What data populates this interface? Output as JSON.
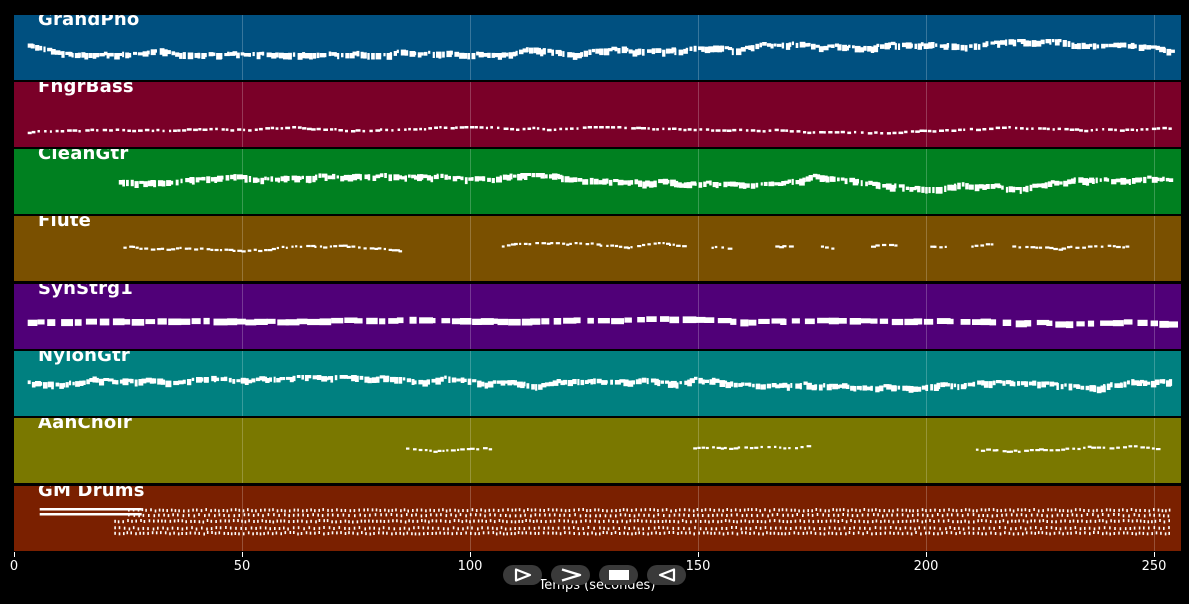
{
  "tracks": [
    {
      "name": "GrandPno",
      "color": "#005080",
      "density": "dense",
      "segments": [
        [
          3,
          254
        ]
      ]
    },
    {
      "name": "FngrBass",
      "color": "#7a0028",
      "density": "sparse",
      "segments": [
        [
          3,
          254
        ]
      ]
    },
    {
      "name": "CleanGtr",
      "color": "#008020",
      "density": "dense",
      "segments": [
        [
          23,
          254
        ]
      ]
    },
    {
      "name": "Flute",
      "color": "#7a5000",
      "density": "phrase",
      "segments": [
        [
          24,
          85
        ],
        [
          107,
          147
        ],
        [
          153,
          158
        ],
        [
          167,
          170
        ],
        [
          177,
          180
        ],
        [
          188,
          194
        ],
        [
          201,
          205
        ],
        [
          210,
          215
        ],
        [
          219,
          230
        ],
        [
          231,
          244
        ]
      ]
    },
    {
      "name": "SynStrg1",
      "color": "#500078",
      "density": "block",
      "segments": [
        [
          3,
          254
        ]
      ]
    },
    {
      "name": "NylonGtr",
      "color": "#008080",
      "density": "dense",
      "segments": [
        [
          3,
          254
        ]
      ]
    },
    {
      "name": "AahChoir",
      "color": "#7a7800",
      "density": "phrase",
      "segments": [
        [
          86,
          105
        ],
        [
          149,
          175
        ],
        [
          211,
          251
        ]
      ]
    },
    {
      "name": "GM Drums",
      "color": "#7a2000",
      "density": "drums",
      "segments": [
        [
          3,
          254
        ]
      ]
    }
  ],
  "axis": {
    "label": "Temps (secondes)",
    "ticks": [
      0,
      50,
      100,
      150,
      200,
      250
    ],
    "range": [
      0,
      256
    ]
  },
  "controls": [
    {
      "name": "play-button",
      "icon": "play-outline-icon"
    },
    {
      "name": "forward-button",
      "icon": "chevron-right-icon"
    },
    {
      "name": "stop-button",
      "icon": "stop-icon"
    },
    {
      "name": "rewind-button",
      "icon": "play-left-outline-icon"
    }
  ]
}
